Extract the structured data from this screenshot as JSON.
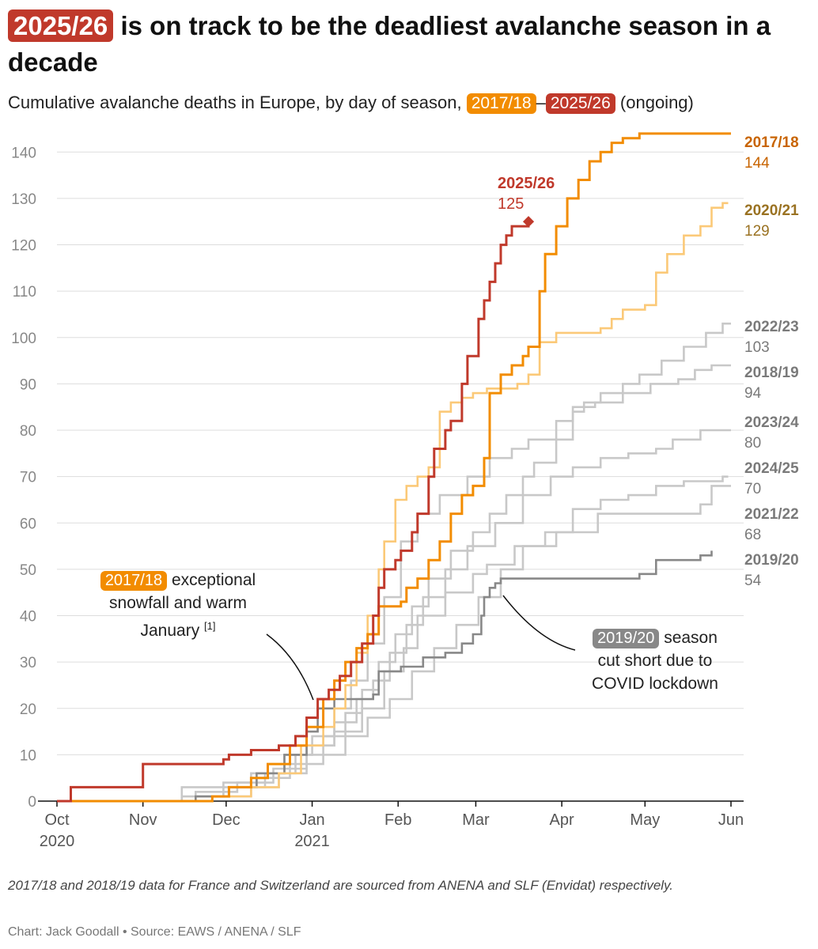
{
  "title": {
    "highlight": "2025/26",
    "rest": " is on track to be the deadliest avalanche season in a decade"
  },
  "subtitle": {
    "prefix": "Cumulative avalanche deaths in Europe, by day of season, ",
    "start": "2017/18",
    "dash": "–",
    "end": "2025/26",
    "suffix": " (ongoing)"
  },
  "colors": {
    "s2017_18": "#f28c00",
    "s2025_26": "#c0392b",
    "s2020_21": "#fbc978",
    "s2019_20": "#888888",
    "other": "#c8c8c8",
    "grid": "#dddddd",
    "axis_text": "#888888",
    "label_gray": "#7a7a7a",
    "label_2017_18": "#c86400",
    "label_2020_21": "#9a7222"
  },
  "annotations": {
    "a2017": {
      "pill": "2017/18",
      "text1": " exceptional",
      "text2": "snowfall and warm",
      "text3": "January ",
      "ref": "[1]"
    },
    "a2019": {
      "pill": "2019/20",
      "text1": " season",
      "text2": "cut short due to",
      "text3": "COVID lockdown"
    }
  },
  "note": "2017/18 and 2018/19 data for France and Switzerland are sourced from ANENA and SLF (Envidat) respectively.",
  "credit": "Chart: Jack Goodall • Source: EAWS / ANENA / SLF",
  "chart_data": {
    "type": "line",
    "title": "Cumulative avalanche deaths in Europe, by day of season",
    "xlabel": "",
    "ylabel": "",
    "x_unit": "day of season (0 = Oct 1)",
    "xlim": [
      0,
      243
    ],
    "ylim": [
      0,
      145
    ],
    "yticks": [
      0,
      10,
      20,
      30,
      40,
      50,
      60,
      70,
      80,
      90,
      100,
      110,
      120,
      130,
      140
    ],
    "xticks": [
      {
        "day": 0,
        "label": "Oct",
        "sub": "2020"
      },
      {
        "day": 31,
        "label": "Nov",
        "sub": ""
      },
      {
        "day": 61,
        "label": "Dec",
        "sub": ""
      },
      {
        "day": 92,
        "label": "Jan",
        "sub": "2021"
      },
      {
        "day": 123,
        "label": "Feb",
        "sub": ""
      },
      {
        "day": 151,
        "label": "Mar",
        "sub": ""
      },
      {
        "day": 182,
        "label": "Apr",
        "sub": ""
      },
      {
        "day": 212,
        "label": "May",
        "sub": ""
      },
      {
        "day": 243,
        "label": "Jun",
        "sub": ""
      }
    ],
    "series": [
      {
        "name": "2021/22",
        "key": "other",
        "final": 68,
        "points": [
          [
            0,
            0
          ],
          [
            38,
            0
          ],
          [
            56,
            1
          ],
          [
            70,
            3
          ],
          [
            80,
            6
          ],
          [
            90,
            12
          ],
          [
            100,
            15
          ],
          [
            110,
            20
          ],
          [
            118,
            28
          ],
          [
            125,
            33
          ],
          [
            130,
            40
          ],
          [
            140,
            45
          ],
          [
            150,
            49
          ],
          [
            155,
            51
          ],
          [
            165,
            55
          ],
          [
            180,
            58
          ],
          [
            195,
            62
          ],
          [
            205,
            62
          ],
          [
            215,
            62
          ],
          [
            225,
            62
          ],
          [
            232,
            64
          ],
          [
            236,
            68
          ],
          [
            243,
            68
          ]
        ]
      },
      {
        "name": "2024/25",
        "key": "other",
        "final": 70,
        "points": [
          [
            0,
            0
          ],
          [
            30,
            0
          ],
          [
            45,
            1
          ],
          [
            60,
            3
          ],
          [
            72,
            5
          ],
          [
            84,
            8
          ],
          [
            96,
            10
          ],
          [
            104,
            14
          ],
          [
            112,
            18
          ],
          [
            120,
            22
          ],
          [
            128,
            28
          ],
          [
            136,
            33
          ],
          [
            144,
            38
          ],
          [
            152,
            44
          ],
          [
            160,
            50
          ],
          [
            168,
            55
          ],
          [
            176,
            58
          ],
          [
            186,
            63
          ],
          [
            196,
            65
          ],
          [
            206,
            66
          ],
          [
            216,
            68
          ],
          [
            226,
            69
          ],
          [
            236,
            69
          ],
          [
            240,
            70
          ],
          [
            242,
            70
          ]
        ]
      },
      {
        "name": "2023/24",
        "key": "other",
        "final": 80,
        "points": [
          [
            0,
            0
          ],
          [
            35,
            0
          ],
          [
            50,
            2
          ],
          [
            65,
            4
          ],
          [
            78,
            7
          ],
          [
            90,
            12
          ],
          [
            100,
            17
          ],
          [
            108,
            22
          ],
          [
            114,
            26
          ],
          [
            120,
            32
          ],
          [
            126,
            38
          ],
          [
            132,
            44
          ],
          [
            140,
            50
          ],
          [
            148,
            55
          ],
          [
            158,
            60
          ],
          [
            168,
            66
          ],
          [
            178,
            70
          ],
          [
            186,
            72
          ],
          [
            196,
            74
          ],
          [
            206,
            75
          ],
          [
            216,
            76
          ],
          [
            222,
            78
          ],
          [
            232,
            80
          ],
          [
            243,
            80
          ]
        ]
      },
      {
        "name": "2018/19",
        "key": "other",
        "final": 94,
        "points": [
          [
            0,
            0
          ],
          [
            30,
            0
          ],
          [
            45,
            3
          ],
          [
            60,
            4
          ],
          [
            70,
            6
          ],
          [
            82,
            10
          ],
          [
            92,
            14
          ],
          [
            100,
            20
          ],
          [
            106,
            26
          ],
          [
            112,
            34
          ],
          [
            118,
            44
          ],
          [
            124,
            56
          ],
          [
            130,
            62
          ],
          [
            138,
            66
          ],
          [
            148,
            70
          ],
          [
            156,
            74
          ],
          [
            164,
            76
          ],
          [
            170,
            78
          ],
          [
            180,
            82
          ],
          [
            186,
            85
          ],
          [
            194,
            86
          ],
          [
            204,
            88
          ],
          [
            214,
            90
          ],
          [
            224,
            91
          ],
          [
            230,
            93
          ],
          [
            236,
            94
          ],
          [
            243,
            94
          ]
        ]
      },
      {
        "name": "2022/23",
        "key": "other",
        "final": 103,
        "points": [
          [
            0,
            0
          ],
          [
            35,
            0
          ],
          [
            50,
            1
          ],
          [
            62,
            3
          ],
          [
            75,
            6
          ],
          [
            86,
            10
          ],
          [
            96,
            14
          ],
          [
            104,
            19
          ],
          [
            110,
            24
          ],
          [
            116,
            30
          ],
          [
            122,
            36
          ],
          [
            128,
            42
          ],
          [
            134,
            48
          ],
          [
            142,
            54
          ],
          [
            150,
            58
          ],
          [
            156,
            62
          ],
          [
            162,
            66
          ],
          [
            168,
            70
          ],
          [
            172,
            73
          ],
          [
            180,
            78
          ],
          [
            186,
            84
          ],
          [
            190,
            86
          ],
          [
            196,
            88
          ],
          [
            204,
            90
          ],
          [
            210,
            92
          ],
          [
            218,
            95
          ],
          [
            226,
            98
          ],
          [
            234,
            101
          ],
          [
            240,
            103
          ],
          [
            243,
            103
          ]
        ]
      },
      {
        "name": "2019/20",
        "key": "s2019_20",
        "final": 54,
        "points": [
          [
            0,
            0
          ],
          [
            35,
            0
          ],
          [
            50,
            1
          ],
          [
            62,
            3
          ],
          [
            72,
            6
          ],
          [
            82,
            10
          ],
          [
            90,
            15
          ],
          [
            94,
            20
          ],
          [
            100,
            22
          ],
          [
            108,
            22
          ],
          [
            114,
            23
          ],
          [
            116,
            28
          ],
          [
            124,
            29
          ],
          [
            132,
            31
          ],
          [
            140,
            32
          ],
          [
            146,
            34
          ],
          [
            150,
            36
          ],
          [
            153,
            40
          ],
          [
            154,
            44
          ],
          [
            156,
            46
          ],
          [
            158,
            47
          ],
          [
            160,
            48
          ],
          [
            200,
            48
          ],
          [
            210,
            49
          ],
          [
            216,
            52
          ],
          [
            232,
            53
          ],
          [
            236,
            54
          ]
        ]
      },
      {
        "name": "2020/21",
        "key": "s2020_21",
        "final": 129,
        "points": [
          [
            0,
            0
          ],
          [
            38,
            0
          ],
          [
            56,
            1
          ],
          [
            70,
            3
          ],
          [
            80,
            6
          ],
          [
            88,
            12
          ],
          [
            96,
            16
          ],
          [
            100,
            20
          ],
          [
            104,
            25
          ],
          [
            108,
            32
          ],
          [
            112,
            40
          ],
          [
            116,
            50
          ],
          [
            118,
            56
          ],
          [
            122,
            65
          ],
          [
            126,
            68
          ],
          [
            130,
            70
          ],
          [
            134,
            72
          ],
          [
            138,
            84
          ],
          [
            142,
            86
          ],
          [
            146,
            87
          ],
          [
            150,
            88
          ],
          [
            155,
            89
          ],
          [
            162,
            89
          ],
          [
            166,
            90
          ],
          [
            170,
            92
          ],
          [
            174,
            99
          ],
          [
            180,
            101
          ],
          [
            196,
            102
          ],
          [
            200,
            104
          ],
          [
            204,
            106
          ],
          [
            212,
            107
          ],
          [
            216,
            114
          ],
          [
            220,
            118
          ],
          [
            226,
            122
          ],
          [
            232,
            124
          ],
          [
            236,
            128
          ],
          [
            240,
            129
          ],
          [
            242,
            129
          ]
        ]
      },
      {
        "name": "2017/18",
        "key": "s2017_18",
        "final": 144,
        "points": [
          [
            0,
            0
          ],
          [
            50,
            0
          ],
          [
            56,
            1
          ],
          [
            62,
            3
          ],
          [
            70,
            5
          ],
          [
            76,
            8
          ],
          [
            84,
            12
          ],
          [
            90,
            16
          ],
          [
            96,
            22
          ],
          [
            100,
            26
          ],
          [
            104,
            30
          ],
          [
            108,
            33
          ],
          [
            112,
            36
          ],
          [
            116,
            42
          ],
          [
            124,
            43
          ],
          [
            126,
            46
          ],
          [
            130,
            48
          ],
          [
            134,
            52
          ],
          [
            138,
            56
          ],
          [
            142,
            62
          ],
          [
            146,
            66
          ],
          [
            150,
            68
          ],
          [
            154,
            74
          ],
          [
            156,
            88
          ],
          [
            160,
            92
          ],
          [
            164,
            94
          ],
          [
            168,
            96
          ],
          [
            170,
            98
          ],
          [
            174,
            110
          ],
          [
            176,
            118
          ],
          [
            180,
            124
          ],
          [
            184,
            130
          ],
          [
            188,
            134
          ],
          [
            192,
            138
          ],
          [
            196,
            140
          ],
          [
            200,
            142
          ],
          [
            204,
            143
          ],
          [
            210,
            144
          ],
          [
            243,
            144
          ]
        ]
      },
      {
        "name": "2025/26",
        "key": "s2025_26",
        "final": 125,
        "points": [
          [
            0,
            0
          ],
          [
            4,
            0
          ],
          [
            5,
            3
          ],
          [
            30,
            3
          ],
          [
            31,
            8
          ],
          [
            56,
            8
          ],
          [
            60,
            9
          ],
          [
            62,
            10
          ],
          [
            70,
            11
          ],
          [
            80,
            12
          ],
          [
            86,
            14
          ],
          [
            90,
            18
          ],
          [
            94,
            22
          ],
          [
            98,
            24
          ],
          [
            102,
            27
          ],
          [
            106,
            30
          ],
          [
            110,
            34
          ],
          [
            114,
            40
          ],
          [
            116,
            46
          ],
          [
            118,
            50
          ],
          [
            122,
            52
          ],
          [
            124,
            54
          ],
          [
            128,
            58
          ],
          [
            130,
            62
          ],
          [
            134,
            70
          ],
          [
            136,
            76
          ],
          [
            140,
            80
          ],
          [
            142,
            82
          ],
          [
            146,
            90
          ],
          [
            148,
            96
          ],
          [
            152,
            104
          ],
          [
            154,
            108
          ],
          [
            156,
            112
          ],
          [
            158,
            116
          ],
          [
            160,
            120
          ],
          [
            162,
            122
          ],
          [
            164,
            124
          ],
          [
            168,
            124
          ],
          [
            170,
            125
          ]
        ]
      }
    ],
    "end_labels": [
      {
        "name": "2017/18",
        "value": "144",
        "key": "label_2017_18"
      },
      {
        "name": "2020/21",
        "value": "129",
        "key": "label_2020_21"
      },
      {
        "name": "2022/23",
        "value": "103",
        "key": "label_gray"
      },
      {
        "name": "2018/19",
        "value": "94",
        "key": "label_gray"
      },
      {
        "name": "2023/24",
        "value": "80",
        "key": "label_gray"
      },
      {
        "name": "2024/25",
        "value": "70",
        "key": "label_gray"
      },
      {
        "name": "2021/22",
        "value": "68",
        "key": "label_gray"
      },
      {
        "name": "2019/20",
        "value": "54",
        "key": "label_gray"
      }
    ],
    "current_label": {
      "name": "2025/26",
      "value": "125"
    }
  }
}
